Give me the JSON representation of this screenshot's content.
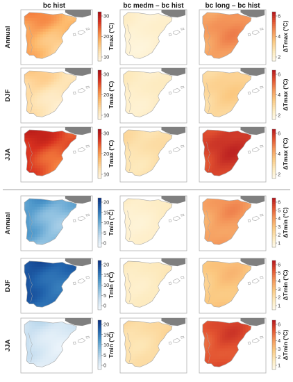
{
  "columns": [
    "bc hist",
    "bc medm – bc hist",
    "bc long – bc hist"
  ],
  "colors": {
    "divider": "#bfbfbf",
    "france": "#7f7f7f",
    "frame": "#b0b0b0",
    "coast": "#a6a6a6"
  },
  "groups": [
    {
      "variable": "Tmax",
      "rows": [
        {
          "label": "Annual",
          "panels": [
            {
              "name": "tmax-annual-hist",
              "palette": "red",
              "level": 0.42,
              "variation": 0.16
            },
            {
              "name": "tmax-annual-medm",
              "palette": "delta",
              "level": 0.12,
              "variation": 0.05
            },
            {
              "name": "tmax-annual-long",
              "palette": "delta",
              "level": 0.58,
              "variation": 0.1
            }
          ],
          "colorbars": [
            {
              "label": "Tmax (°C)",
              "ticks": [
                "30",
                "20",
                "10"
              ],
              "ramp": "red"
            },
            {
              "label": "ΔTmax (°C)",
              "ticks": [
                "6",
                "4",
                "2"
              ],
              "ramp": "delta"
            }
          ]
        },
        {
          "label": "DJF",
          "panels": [
            {
              "name": "tmax-djf-hist",
              "palette": "red",
              "level": 0.2,
              "variation": 0.12
            },
            {
              "name": "tmax-djf-medm",
              "palette": "delta",
              "level": 0.16,
              "variation": 0.05
            },
            {
              "name": "tmax-djf-long",
              "palette": "delta",
              "level": 0.32,
              "variation": 0.08
            }
          ],
          "colorbars": [
            {
              "label": "Tmax (°C)",
              "ticks": [
                "30",
                "20",
                "10"
              ],
              "ramp": "red"
            },
            {
              "label": "ΔTmax (°C)",
              "ticks": [
                "6",
                "4",
                "2"
              ],
              "ramp": "delta"
            }
          ]
        },
        {
          "label": "JJA",
          "panels": [
            {
              "name": "tmax-jja-hist",
              "palette": "red",
              "level": 0.74,
              "variation": 0.16
            },
            {
              "name": "tmax-jja-medm",
              "palette": "delta",
              "level": 0.26,
              "variation": 0.06
            },
            {
              "name": "tmax-jja-long",
              "palette": "delta",
              "level": 0.86,
              "variation": 0.1
            }
          ],
          "colorbars": [
            {
              "label": "Tmax (°C)",
              "ticks": [
                "30",
                "20",
                "10"
              ],
              "ramp": "red"
            },
            {
              "label": "ΔTmax (°C)",
              "ticks": [
                "6",
                "4",
                "2"
              ],
              "ramp": "delta"
            }
          ]
        }
      ]
    },
    {
      "variable": "Tmin",
      "rows": [
        {
          "label": "Annual",
          "panels": [
            {
              "name": "tmin-annual-hist",
              "palette": "blue",
              "level": 0.52,
              "variation": 0.18
            },
            {
              "name": "tmin-annual-medm",
              "palette": "delta",
              "level": 0.14,
              "variation": 0.05
            },
            {
              "name": "tmin-annual-long",
              "palette": "delta",
              "level": 0.56,
              "variation": 0.1
            }
          ],
          "colorbars": [
            {
              "label": "Tmin (°C)",
              "ticks": [
                "20",
                "15",
                "10",
                "5",
                "0"
              ],
              "ramp": "blue"
            },
            {
              "label": "ΔTmin (°C)",
              "ticks": [
                "6",
                "5",
                "4",
                "3",
                "2",
                "1"
              ],
              "ramp": "delta"
            }
          ]
        },
        {
          "label": "DJF",
          "panels": [
            {
              "name": "tmin-djf-hist",
              "palette": "blue",
              "level": 0.82,
              "variation": 0.12
            },
            {
              "name": "tmin-djf-medm",
              "palette": "delta",
              "level": 0.18,
              "variation": 0.05
            },
            {
              "name": "tmin-djf-long",
              "palette": "delta",
              "level": 0.4,
              "variation": 0.08
            }
          ],
          "colorbars": [
            {
              "label": "Tmin (°C)",
              "ticks": [
                "20",
                "15",
                "10",
                "5",
                "0"
              ],
              "ramp": "blue"
            },
            {
              "label": "ΔTmin (°C)",
              "ticks": [
                "6",
                "5",
                "4",
                "3",
                "2",
                "1"
              ],
              "ramp": "delta"
            }
          ]
        },
        {
          "label": "JJA",
          "panels": [
            {
              "name": "tmin-jja-hist",
              "palette": "blue",
              "level": 0.18,
              "variation": 0.12
            },
            {
              "name": "tmin-jja-medm",
              "palette": "delta",
              "level": 0.28,
              "variation": 0.06
            },
            {
              "name": "tmin-jja-long",
              "palette": "delta",
              "level": 0.8,
              "variation": 0.1
            }
          ],
          "colorbars": [
            {
              "label": "Tmin (°C)",
              "ticks": [
                "20",
                "15",
                "10",
                "5",
                "0"
              ],
              "ramp": "blue"
            },
            {
              "label": "ΔTmin (°C)",
              "ticks": [
                "6",
                "5",
                "4",
                "3",
                "2",
                "1"
              ],
              "ramp": "delta"
            }
          ]
        }
      ]
    }
  ]
}
